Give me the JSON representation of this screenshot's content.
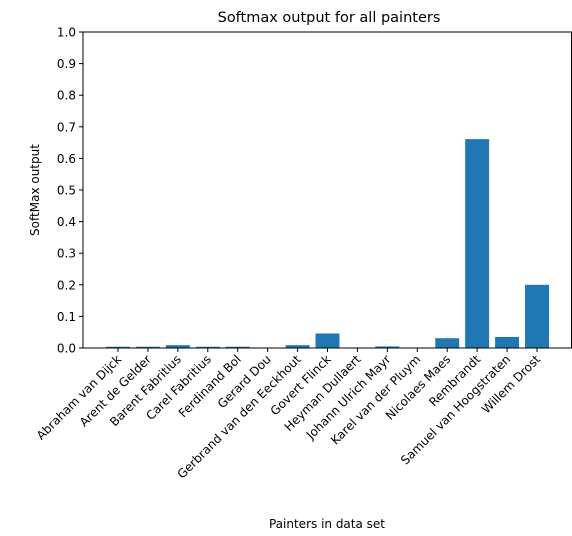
{
  "chart_data": {
    "type": "bar",
    "title": "Softmax output for all painters",
    "xlabel": "Painters in data set",
    "ylabel": "SoftMax output",
    "ylim": [
      0,
      1.0
    ],
    "yticks": [
      "0.0",
      "0.1",
      "0.2",
      "0.3",
      "0.4",
      "0.5",
      "0.6",
      "0.7",
      "0.8",
      "0.9",
      "1.0"
    ],
    "grid": false,
    "bar_color": "#1f77b4",
    "categories": [
      "Abraham van Dijck",
      "Arent de Gelder",
      "Barent Fabritius",
      "Carel Fabritius",
      "Ferdinand Bol",
      "Gerard Dou",
      "Gerbrand van den Eeckhout",
      "Govert Flinck",
      "Heyman Dullaert",
      "Johann Ulrich Mayr",
      "Karel van der Pluym",
      "Nicolaes Maes",
      "Rembrandt",
      "Samuel van Hoogstraten",
      "Willem Drost"
    ],
    "values": [
      0.004,
      0.004,
      0.009,
      0.004,
      0.004,
      0.0,
      0.009,
      0.046,
      0.0,
      0.005,
      0.0,
      0.031,
      0.661,
      0.035,
      0.2
    ]
  }
}
